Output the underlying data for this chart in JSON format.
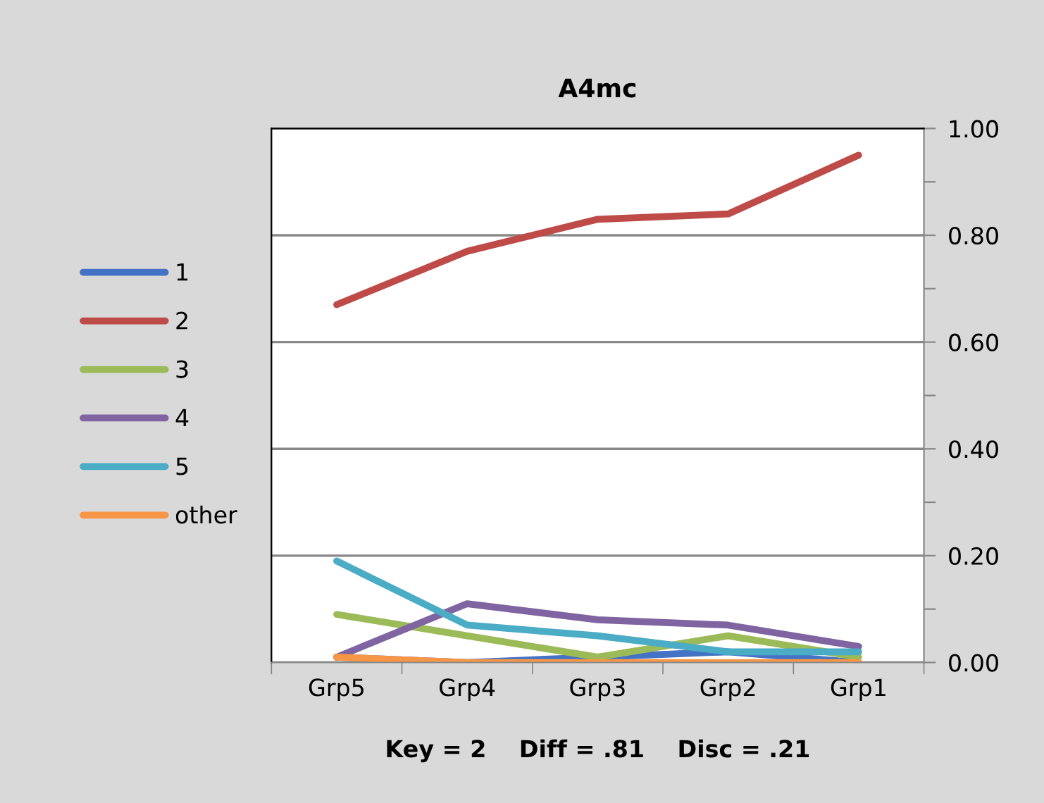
{
  "chart_data": {
    "type": "line",
    "title": "A4mc",
    "categories": [
      "Grp5",
      "Grp4",
      "Grp3",
      "Grp2",
      "Grp1"
    ],
    "series": [
      {
        "name": "1",
        "color": "#4472c4",
        "values": [
          0.01,
          0.0,
          0.01,
          0.02,
          0.0
        ]
      },
      {
        "name": "2",
        "color": "#be4b48",
        "values": [
          0.67,
          0.77,
          0.83,
          0.84,
          0.95
        ]
      },
      {
        "name": "3",
        "color": "#9bbb59",
        "values": [
          0.09,
          0.05,
          0.01,
          0.05,
          0.01
        ]
      },
      {
        "name": "4",
        "color": "#8064a2",
        "values": [
          0.01,
          0.11,
          0.08,
          0.07,
          0.03
        ]
      },
      {
        "name": "5",
        "color": "#4bacc6",
        "values": [
          0.19,
          0.07,
          0.05,
          0.02,
          0.02
        ]
      },
      {
        "name": "other",
        "color": "#f79646",
        "values": [
          0.01,
          0.0,
          0.0,
          0.0,
          0.0
        ]
      }
    ],
    "ylim": [
      0,
      1
    ],
    "yticks": [
      {
        "value": 0,
        "label": "0.00"
      },
      {
        "value": 0.1,
        "label": null
      },
      {
        "value": 0.2,
        "label": "0.20"
      },
      {
        "value": 0.3,
        "label": null
      },
      {
        "value": 0.4,
        "label": "0.40"
      },
      {
        "value": 0.5,
        "label": null
      },
      {
        "value": 0.6,
        "label": "0.60"
      },
      {
        "value": 0.7,
        "label": null
      },
      {
        "value": 0.8,
        "label": "0.80"
      },
      {
        "value": 0.9,
        "label": null
      },
      {
        "value": 1,
        "label": "1.00"
      }
    ],
    "grid": "y",
    "legend": "left",
    "marker": "none",
    "line_style": "solid",
    "annotations": [
      "Key = 2    Diff = .81    Disc = .21"
    ]
  }
}
